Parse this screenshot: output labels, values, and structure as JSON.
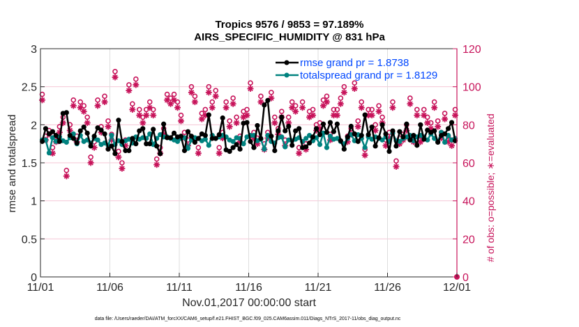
{
  "chart_data": {
    "type": "line",
    "title": [
      "Tropics 9576 / 9853 = 97.189%",
      "AIRS_SPECIFIC_HUMIDITY @ 831 hPa"
    ],
    "xlabel": "Nov.01,2017 00:00:00 start",
    "ylabel_left": "rmse and totalspread",
    "ylabel_right": "# of obs: o=possible; ∗=evaluated",
    "footnote": "data file: /Users/raeder/DAI/ATM_forcXX/CAM6_setup/f.e21.FHIST_BGC.f09_025.CAM6assim.011/Diags_NTrS_2017-11/obs_diag_output.nc",
    "x_range_days": [
      0,
      30
    ],
    "x_ticks": [
      {
        "day": 0,
        "label": "11/01"
      },
      {
        "day": 5,
        "label": "11/06"
      },
      {
        "day": 10,
        "label": "11/11"
      },
      {
        "day": 15,
        "label": "11/16"
      },
      {
        "day": 20,
        "label": "11/21"
      },
      {
        "day": 25,
        "label": "11/26"
      },
      {
        "day": 30,
        "label": "12/01"
      }
    ],
    "ylim_left": [
      0,
      3
    ],
    "yticks_left": [
      "0",
      "0.5",
      "1",
      "1.5",
      "2",
      "2.5",
      "3"
    ],
    "ylim_right": [
      0,
      120
    ],
    "yticks_right": [
      "0",
      "20",
      "40",
      "60",
      "80",
      "100",
      "120"
    ],
    "grid": true,
    "legend_placement": "top-right",
    "legend": [
      {
        "label": "rmse grand pr = 1.8738",
        "color": "#000000"
      },
      {
        "label": "totalspread grand pr = 1.8129",
        "color": "#00827f"
      }
    ],
    "colors": {
      "rmse": "#000000",
      "totalspread": "#00827f",
      "obs": "#c7135a",
      "legend_text": "#0047ff",
      "grid_horizontal": "#f5c6d6",
      "grid_vertical": "#dddddd",
      "axis": "#262626"
    },
    "series_note": "6-hourly time series, 120 points from Nov 01 to Dec 01 (values estimated from plot)",
    "series": [
      {
        "name": "rmse",
        "axis": "left",
        "values": [
          1.78,
          1.95,
          1.88,
          1.91,
          1.86,
          1.78,
          2.15,
          2.16,
          1.86,
          1.82,
          1.76,
          1.92,
          1.97,
          1.89,
          1.72,
          1.85,
          1.96,
          1.93,
          1.88,
          1.68,
          1.72,
          1.62,
          2.06,
          1.78,
          1.66,
          1.66,
          1.82,
          1.75,
          1.92,
          1.95,
          1.75,
          1.75,
          1.94,
          1.72,
          1.62,
          2.01,
          1.83,
          1.83,
          1.89,
          1.84,
          1.85,
          1.66,
          1.91,
          1.85,
          1.77,
          1.82,
          1.88,
          1.86,
          2.13,
          1.82,
          1.82,
          1.87,
          2.09,
          1.67,
          1.65,
          1.7,
          1.74,
          1.68,
          2.02,
          2.03,
          1.78,
          1.7,
          1.99,
          1.82,
          2.26,
          2.32,
          1.85,
          1.66,
          1.92,
          2.1,
          1.92,
          1.98,
          1.73,
          1.92,
          1.95,
          1.7,
          1.71,
          1.76,
          1.84,
          1.95,
          1.87,
          2.01,
          1.9,
          2.03,
          1.91,
          2.01,
          1.79,
          1.68,
          1.84,
          1.98,
          1.88,
          1.78,
          1.86,
          2.13,
          1.87,
          1.97,
          1.72,
          1.83,
          2.0,
          1.88,
          1.65,
          1.92,
          1.72,
          1.91,
          1.84,
          2.01,
          1.8,
          1.86,
          1.73,
          2.0,
          1.81,
          1.93,
          1.9,
          1.92,
          1.77,
          1.86,
          1.88,
          1.95,
          2.03,
          1.79
        ]
      },
      {
        "name": "totalspread",
        "axis": "left",
        "values": [
          1.8,
          1.8,
          1.63,
          1.83,
          1.78,
          1.84,
          1.79,
          1.77,
          1.83,
          1.88,
          1.75,
          1.86,
          1.78,
          1.8,
          1.76,
          1.82,
          1.8,
          1.74,
          1.76,
          1.73,
          1.86,
          1.74,
          1.79,
          1.74,
          1.79,
          1.81,
          1.76,
          1.84,
          1.81,
          1.83,
          1.82,
          1.88,
          1.74,
          1.82,
          1.87,
          1.84,
          1.84,
          1.82,
          1.8,
          1.78,
          1.82,
          1.83,
          1.69,
          1.8,
          1.83,
          1.82,
          1.79,
          1.81,
          1.73,
          1.86,
          1.82,
          1.84,
          1.86,
          1.84,
          1.8,
          1.78,
          1.83,
          1.82,
          1.75,
          1.84,
          1.86,
          1.86,
          1.79,
          1.81,
          1.68,
          1.86,
          1.78,
          1.76,
          1.83,
          1.84,
          1.71,
          1.8,
          1.79,
          1.81,
          1.83,
          1.78,
          1.82,
          1.86,
          1.79,
          1.83,
          1.74,
          1.89,
          1.7,
          1.85,
          1.81,
          1.82,
          1.78,
          1.75,
          1.82,
          1.87,
          1.79,
          1.87,
          1.82,
          1.7,
          1.84,
          1.81,
          1.84,
          1.82,
          1.8,
          1.84,
          1.78,
          1.89,
          1.79,
          1.78,
          1.82,
          1.84,
          1.86,
          1.79,
          1.84,
          1.86,
          1.84,
          1.8,
          1.88,
          1.82,
          1.78,
          1.9,
          1.77,
          1.86,
          1.8,
          1.82
        ]
      },
      {
        "name": "obs_possible",
        "axis": "right",
        "marker": "o",
        "values": [
          96,
          74,
          77,
          68,
          74,
          79,
          84,
          56,
          80,
          93,
          74,
          92,
          90,
          84,
          63,
          71,
          93,
          79,
          95,
          82,
          75,
          108,
          66,
          60,
          72,
          101,
          91,
          104,
          88,
          84,
          88,
          92,
          88,
          62,
          68,
          78,
          96,
          94,
          96,
          92,
          85,
          76,
          72,
          100,
          95,
          68,
          86,
          88,
          100,
          92,
          98,
          68,
          76,
          92,
          82,
          94,
          84,
          74,
          87,
          88,
          102,
          76,
          73,
          95,
          70,
          76,
          97,
          84,
          78,
          87,
          72,
          84,
          92,
          90,
          68,
          92,
          70,
          87,
          88,
          80,
          81,
          93,
          95,
          75,
          88,
          88,
          94,
          100,
          74,
          78,
          102,
          82,
          92,
          67,
          88,
          88,
          80,
          90,
          84,
          72,
          76,
          92,
          61,
          73,
          75,
          80,
          94,
          74,
          88,
          74,
          88,
          84,
          81,
          92,
          82,
          76,
          86,
          74,
          72,
          88
        ]
      },
      {
        "name": "obs_evaluated",
        "axis": "right",
        "marker": "*",
        "values": [
          93,
          72,
          75,
          65,
          71,
          76,
          81,
          53,
          77,
          90,
          71,
          89,
          87,
          81,
          60,
          68,
          90,
          76,
          92,
          79,
          72,
          105,
          63,
          57,
          69,
          98,
          88,
          101,
          85,
          81,
          85,
          89,
          85,
          59,
          65,
          75,
          93,
          91,
          93,
          89,
          82,
          73,
          69,
          97,
          92,
          65,
          83,
          85,
          97,
          89,
          95,
          65,
          73,
          89,
          79,
          91,
          81,
          71,
          84,
          85,
          99,
          73,
          70,
          92,
          67,
          73,
          94,
          81,
          75,
          84,
          69,
          81,
          89,
          87,
          65,
          89,
          67,
          84,
          85,
          77,
          78,
          90,
          92,
          72,
          85,
          85,
          91,
          97,
          71,
          75,
          99,
          79,
          89,
          64,
          85,
          85,
          77,
          87,
          81,
          69,
          73,
          89,
          58,
          70,
          72,
          77,
          91,
          71,
          85,
          71,
          85,
          81,
          78,
          89,
          79,
          73,
          83,
          71,
          69,
          85
        ]
      }
    ],
    "final_point": {
      "day": 30,
      "obs_possible": 0,
      "obs_evaluated": 0
    }
  }
}
